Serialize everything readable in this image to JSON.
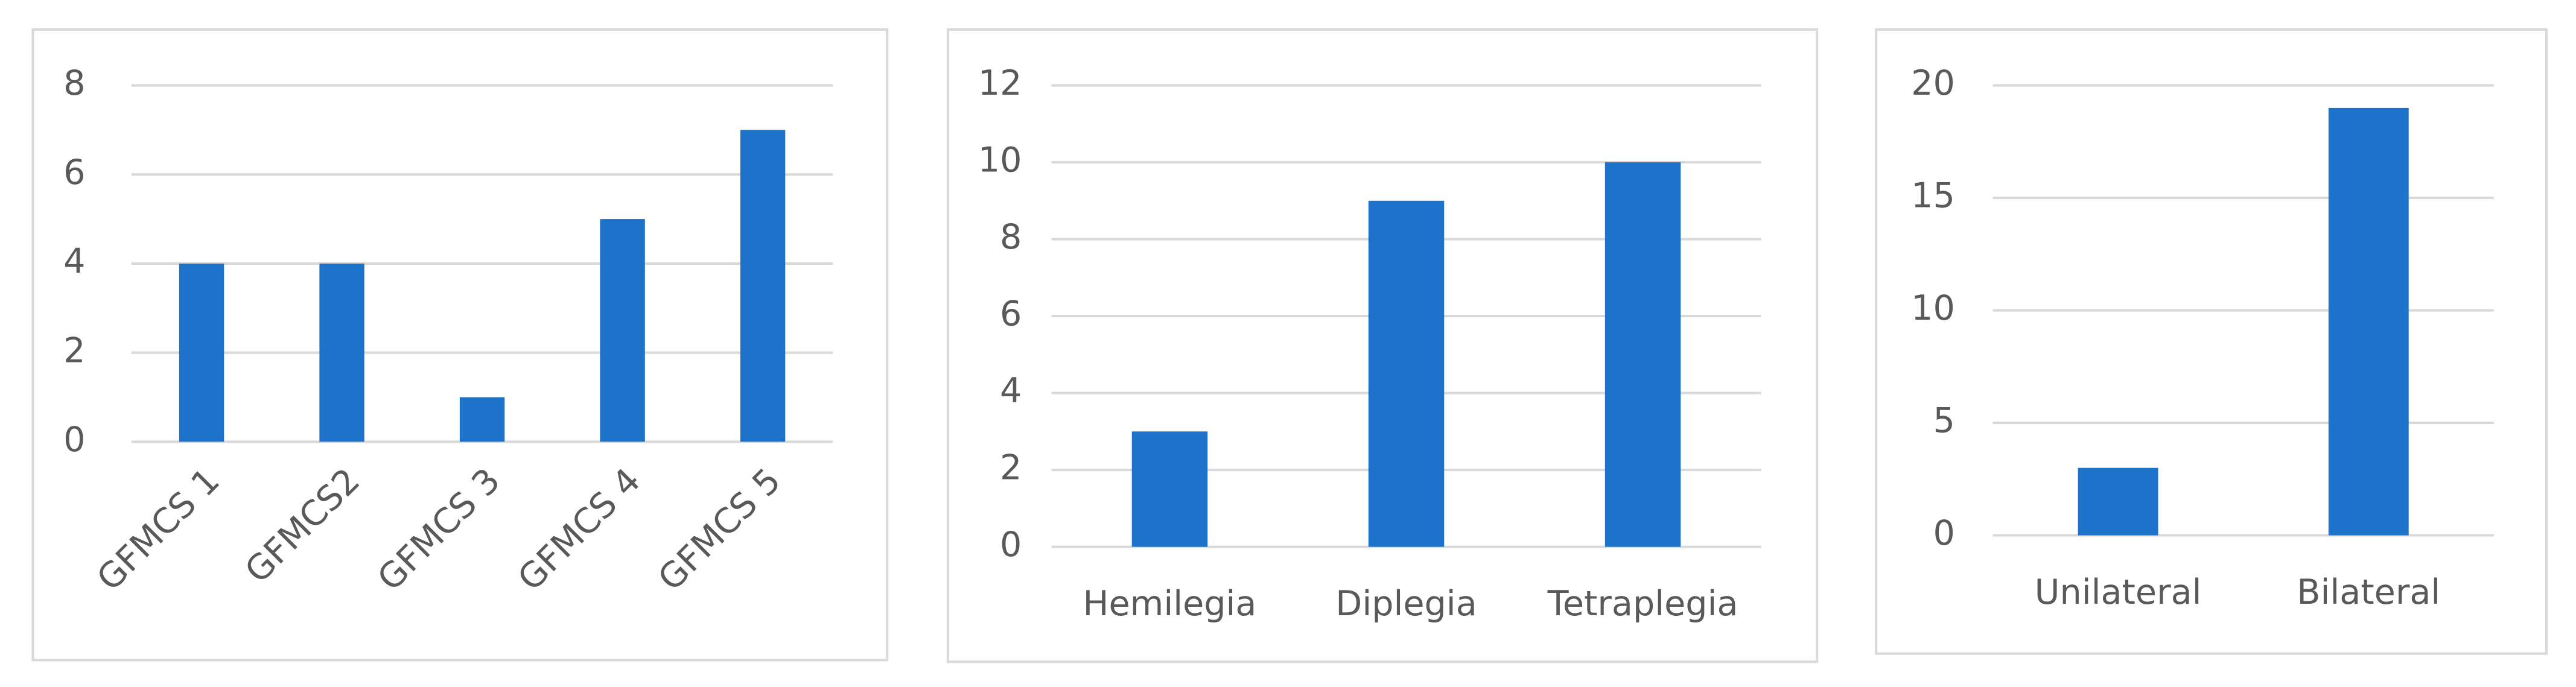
{
  "chart_data": [
    {
      "type": "bar",
      "categories": [
        "GFMCS 1",
        "GFMCS2",
        "GFMCS 3",
        "GFMCS 4",
        "GFMCS 5"
      ],
      "values": [
        4,
        4,
        1,
        5,
        7
      ],
      "color": "#1c73c9",
      "ylim": [
        0,
        8
      ],
      "yticks": [
        0,
        2,
        4,
        6,
        8
      ],
      "grid": true
    },
    {
      "type": "bar",
      "categories": [
        "Hemilegia",
        "Diplegia",
        "Tetraplegia"
      ],
      "values": [
        3,
        9,
        10
      ],
      "color": "#1c73c9",
      "ylim": [
        0,
        12
      ],
      "yticks": [
        0,
        2,
        4,
        6,
        8,
        10,
        12
      ],
      "grid": true
    },
    {
      "type": "bar",
      "categories": [
        "Unilateral",
        "Bilateral"
      ],
      "values": [
        3,
        19
      ],
      "color": "#1c73c9",
      "ylim": [
        0,
        20
      ],
      "yticks": [
        0,
        5,
        10,
        15,
        20
      ],
      "grid": true
    }
  ]
}
